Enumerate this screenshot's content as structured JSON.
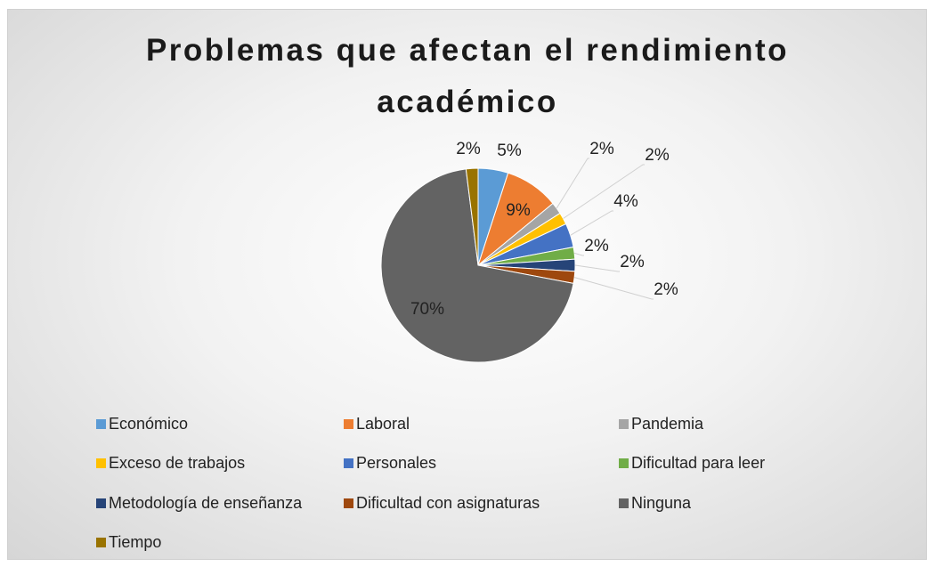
{
  "chart_data": {
    "type": "pie",
    "title": "Problemas que afectan el rendimiento académico",
    "categories": [
      "Económico",
      "Laboral",
      "Pandemia",
      "Exceso de trabajos",
      "Personales",
      "Dificultad para leer",
      "Metodología de enseñanza",
      "Dificultad con asignaturas",
      "Ninguna",
      "Tiempo"
    ],
    "values": [
      5,
      9,
      2,
      2,
      4,
      2,
      2,
      2,
      70,
      2
    ],
    "value_labels": [
      "5%",
      "9%",
      "2%",
      "2%",
      "4%",
      "2%",
      "2%",
      "2%",
      "70%",
      "2%"
    ],
    "colors": [
      "#5b9bd5",
      "#ed7d31",
      "#a5a5a5",
      "#ffc000",
      "#4472c4",
      "#70ad47",
      "#264478",
      "#9e480e",
      "#636363",
      "#997300"
    ],
    "legend": "bottom"
  }
}
